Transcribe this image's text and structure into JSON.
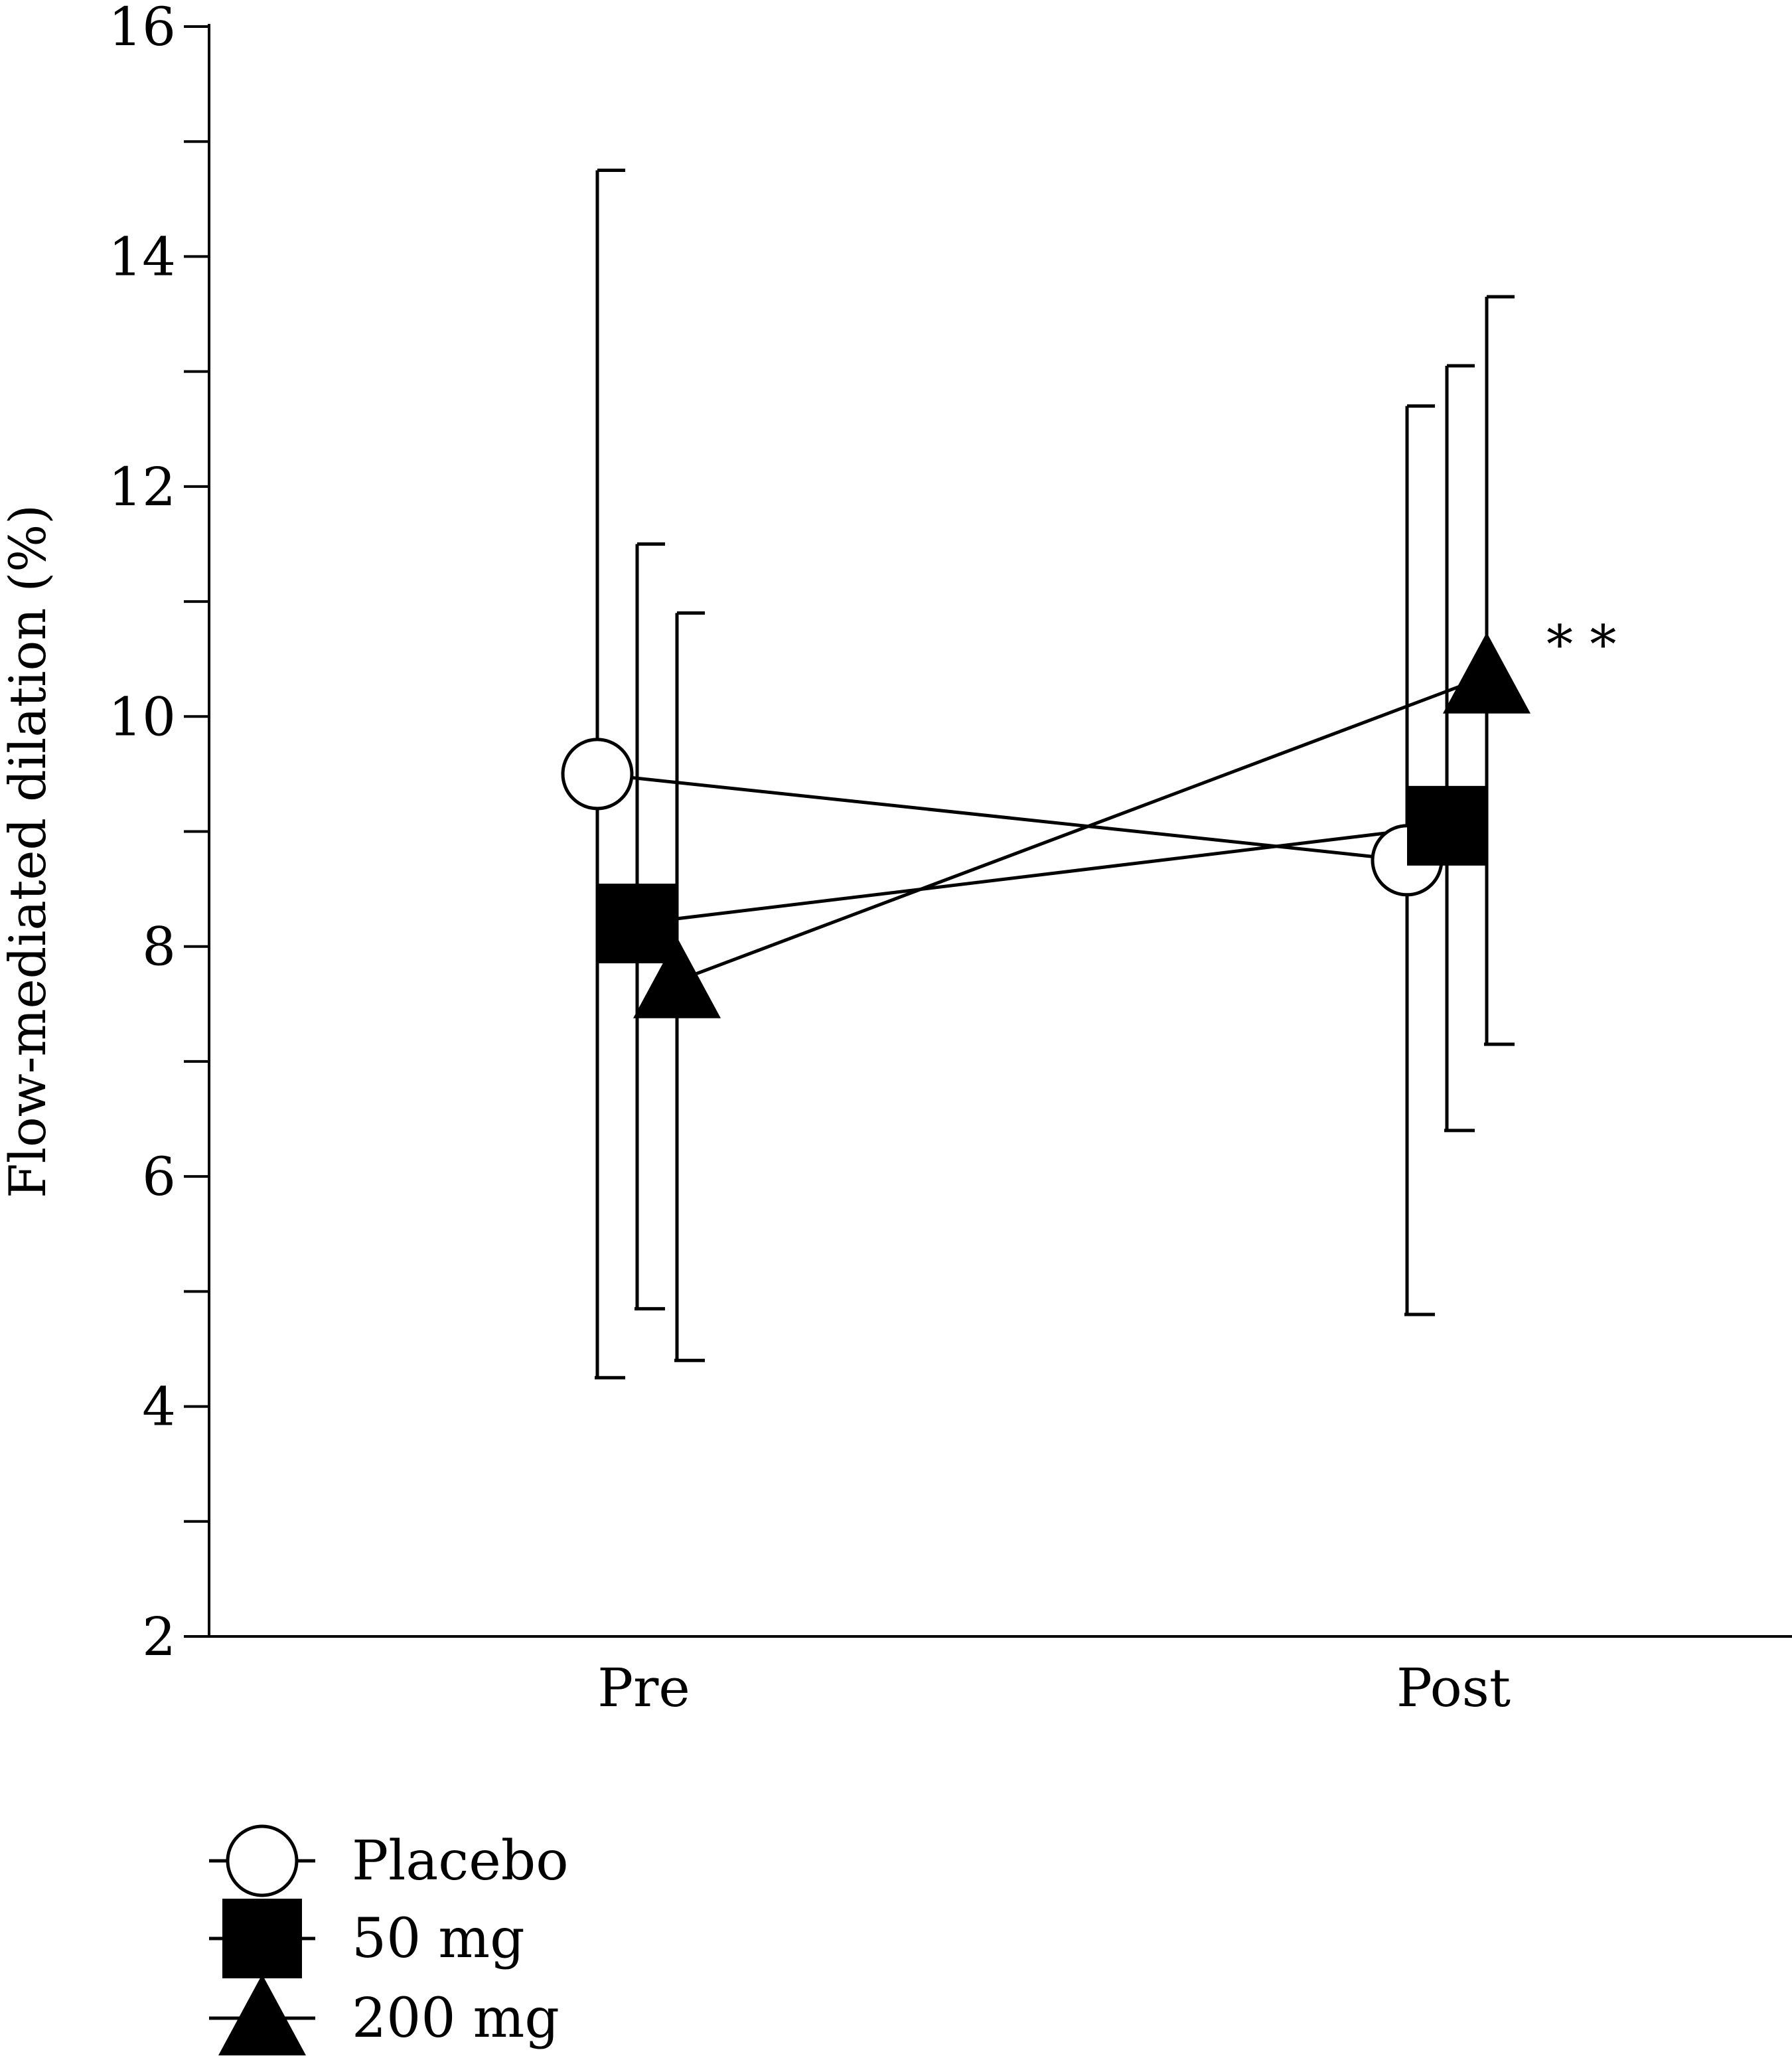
{
  "chart_data": {
    "type": "line",
    "title": "",
    "xlabel": "",
    "ylabel": "Flow-mediated dilation (%)",
    "ylim": [
      2,
      16
    ],
    "y_major_ticks": [
      2,
      4,
      6,
      8,
      10,
      12,
      14,
      16
    ],
    "y_minor_ticks": [
      3,
      5,
      7,
      9,
      11,
      13,
      15
    ],
    "categories": [
      "Pre",
      "Post"
    ],
    "grid": false,
    "legend_position": "bottom-left",
    "series": [
      {
        "name": "Placebo",
        "marker": "circle-open",
        "values": [
          9.5,
          8.75
        ],
        "error_low": [
          4.25,
          4.8
        ],
        "error_high": [
          14.75,
          12.7
        ]
      },
      {
        "name": "50 mg",
        "marker": "square-filled",
        "values": [
          8.2,
          9.05
        ],
        "error_low": [
          4.85,
          6.4
        ],
        "error_high": [
          11.5,
          13.05
        ]
      },
      {
        "name": "200 mg",
        "marker": "triangle-filled",
        "values": [
          7.7,
          10.35
        ],
        "error_low": [
          4.4,
          7.15
        ],
        "error_high": [
          10.9,
          13.65
        ]
      }
    ],
    "annotations": [
      {
        "text": "* *",
        "series": "200 mg",
        "category": "Post"
      }
    ]
  }
}
